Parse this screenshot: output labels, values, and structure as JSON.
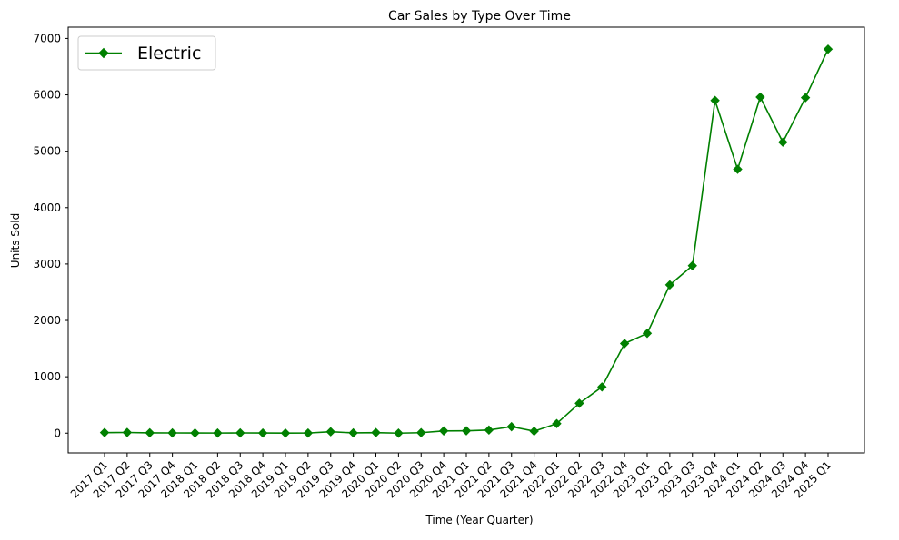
{
  "chart_data": {
    "type": "line",
    "title": "Car Sales by Type Over Time",
    "xlabel": "Time (Year Quarter)",
    "ylabel": "Units Sold",
    "ylim": [
      -350,
      7200
    ],
    "y_ticks": [
      0,
      1000,
      2000,
      3000,
      4000,
      5000,
      6000,
      7000
    ],
    "grid": false,
    "legend_position": "upper-left",
    "categories": [
      "2017 Q1",
      "2017 Q2",
      "2017 Q3",
      "2017 Q4",
      "2018 Q1",
      "2018 Q2",
      "2018 Q3",
      "2018 Q4",
      "2019 Q1",
      "2019 Q2",
      "2019 Q3",
      "2019 Q4",
      "2020 Q1",
      "2020 Q2",
      "2020 Q3",
      "2020 Q4",
      "2021 Q1",
      "2021 Q2",
      "2021 Q3",
      "2021 Q4",
      "2022 Q1",
      "2022 Q2",
      "2022 Q3",
      "2022 Q4",
      "2023 Q1",
      "2023 Q2",
      "2023 Q3",
      "2023 Q4",
      "2024 Q1",
      "2024 Q2",
      "2024 Q3",
      "2024 Q4",
      "2025 Q1"
    ],
    "series": [
      {
        "name": "Electric",
        "color": "#008000",
        "marker": "diamond",
        "values": [
          10,
          12,
          6,
          4,
          3,
          2,
          4,
          3,
          1,
          2,
          25,
          5,
          10,
          0,
          8,
          40,
          42,
          55,
          115,
          35,
          170,
          530,
          820,
          1590,
          1770,
          2630,
          2970,
          5900,
          4680,
          5960,
          5160,
          5950,
          6810
        ]
      }
    ]
  }
}
